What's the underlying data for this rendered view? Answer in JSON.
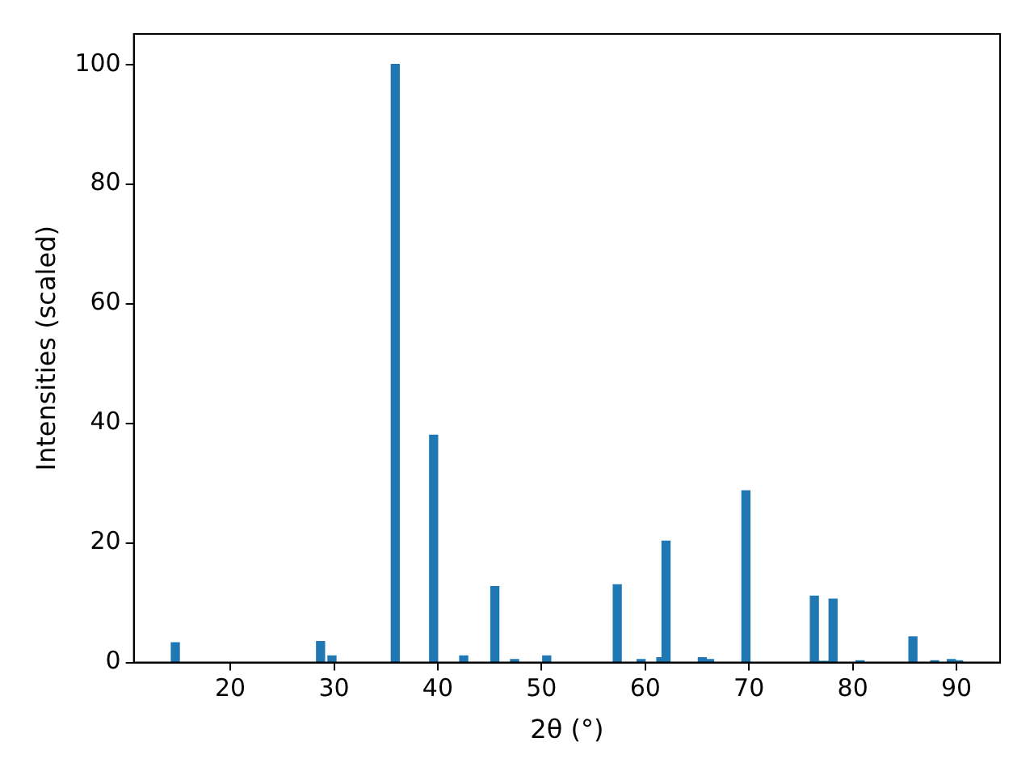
{
  "chart_data": {
    "type": "bar",
    "xlabel": "2θ (°)",
    "ylabel": "Intensities (scaled)",
    "x": [
      14.7,
      28.7,
      29.8,
      35.9,
      39.6,
      42.5,
      45.5,
      47.4,
      50.5,
      57.3,
      59.6,
      61.5,
      62.0,
      65.5,
      66.2,
      69.7,
      76.3,
      76.8,
      77.6,
      78.1,
      80.7,
      85.8,
      87.9,
      89.5,
      90.2
    ],
    "values": [
      3.3,
      3.5,
      1.1,
      100,
      38,
      1.1,
      12.7,
      0.5,
      1.1,
      13.0,
      0.5,
      0.8,
      20.3,
      0.8,
      0.5,
      28.7,
      11.1,
      0.2,
      0.2,
      10.6,
      0.3,
      4.3,
      0.3,
      0.5,
      0.3
    ],
    "color": "#1f77b4",
    "xlim": [
      10.7,
      94.2
    ],
    "xticks": [
      20,
      30,
      40,
      50,
      60,
      70,
      80,
      90
    ],
    "ylim": [
      0,
      105.1
    ],
    "yticks": [
      0,
      20,
      40,
      60,
      80,
      100
    ],
    "grid": false,
    "legend": false
  }
}
